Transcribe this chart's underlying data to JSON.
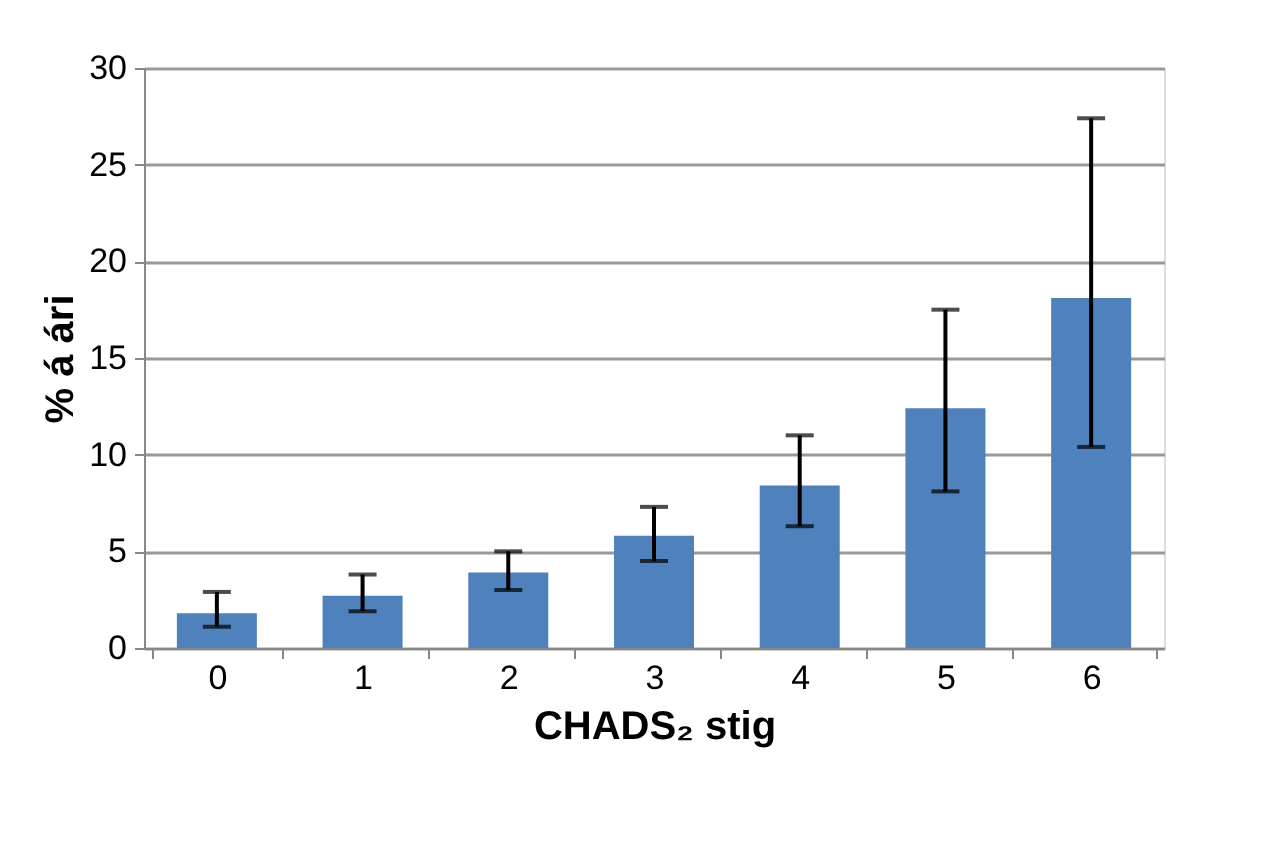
{
  "chart_data": {
    "type": "bar",
    "categories": [
      "0",
      "1",
      "2",
      "3",
      "4",
      "5",
      "6"
    ],
    "values": [
      1.8,
      2.7,
      3.9,
      5.8,
      8.4,
      12.4,
      18.1
    ],
    "errors": [
      [
        1.1,
        2.9
      ],
      [
        1.9,
        3.8
      ],
      [
        3.0,
        5.0
      ],
      [
        4.5,
        7.3
      ],
      [
        6.3,
        11.0
      ],
      [
        8.1,
        17.5
      ],
      [
        10.4,
        27.4
      ]
    ],
    "color": "#4f81bd",
    "xlabel": "CHADS₂ stig",
    "ylabel": "% á ári",
    "ylim": [
      0,
      30
    ],
    "yticks": [
      0,
      5,
      10,
      15,
      20,
      25,
      30
    ],
    "grid": "y"
  }
}
